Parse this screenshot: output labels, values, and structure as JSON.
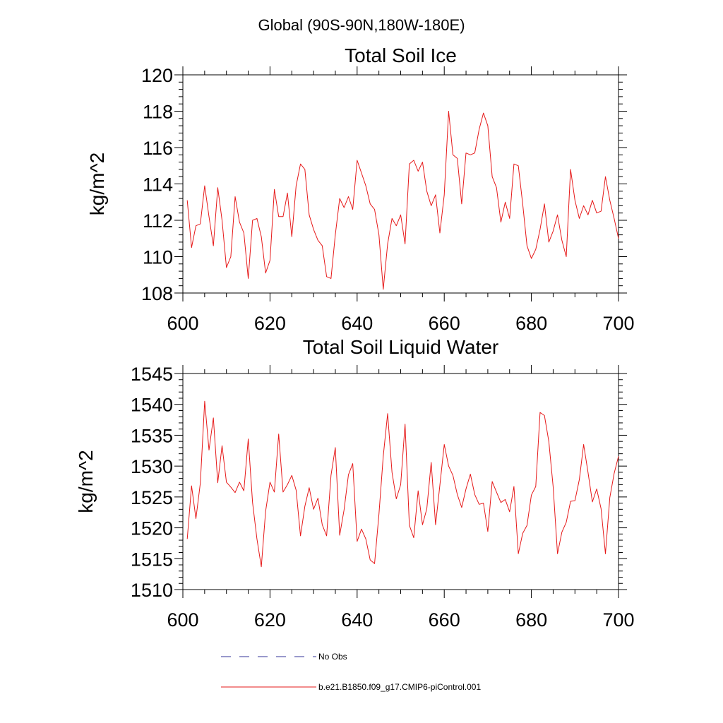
{
  "figure_title": "Global (90S-90N,180W-180E)",
  "legend": {
    "entries": [
      {
        "label": "No Obs",
        "style": "dashed",
        "color": "#333399"
      },
      {
        "label": "b.e21.B1850.f09_g17.CMIP6-piControl.001",
        "style": "solid",
        "color": "#e61919"
      }
    ]
  },
  "chart_data": [
    {
      "type": "line",
      "title": "Total Soil Ice",
      "xlabel": "",
      "ylabel": "kg/m^2",
      "xlim": [
        600,
        700
      ],
      "ylim": [
        108,
        120
      ],
      "x_ticks": [
        600,
        620,
        640,
        660,
        680,
        700
      ],
      "y_ticks": [
        108,
        110,
        112,
        114,
        116,
        118,
        120
      ],
      "x_start": 601,
      "color": "#e61919",
      "values": [
        113.1,
        110.5,
        111.7,
        111.8,
        113.9,
        112.2,
        110.6,
        113.8,
        112.0,
        109.4,
        110.0,
        113.3,
        111.9,
        111.3,
        108.8,
        112.0,
        112.1,
        111.1,
        109.1,
        109.8,
        113.7,
        112.2,
        112.2,
        113.5,
        111.1,
        113.9,
        115.1,
        114.8,
        112.3,
        111.5,
        110.9,
        110.6,
        108.9,
        108.8,
        111.2,
        113.2,
        112.7,
        113.3,
        112.6,
        115.3,
        114.6,
        113.9,
        112.9,
        112.6,
        111.2,
        108.2,
        110.7,
        112.1,
        111.7,
        112.3,
        110.7,
        115.1,
        115.3,
        114.7,
        115.2,
        113.6,
        112.8,
        113.4,
        111.3,
        113.4,
        118.0,
        115.6,
        115.4,
        112.9,
        115.7,
        115.6,
        115.7,
        117.0,
        117.9,
        117.2,
        114.4,
        113.8,
        111.9,
        113.0,
        112.1,
        115.1,
        115.0,
        112.9,
        110.6,
        109.9,
        110.4,
        111.5,
        112.9,
        110.8,
        111.4,
        112.3,
        110.9,
        110.0,
        114.8,
        113.1,
        112.1,
        112.8,
        112.3,
        113.1,
        112.4,
        112.5,
        114.4,
        113.1,
        112.1,
        111.0
      ]
    },
    {
      "type": "line",
      "title": "Total Soil Liquid Water",
      "xlabel": "",
      "ylabel": "kg/m^2",
      "xlim": [
        600,
        700
      ],
      "ylim": [
        1510,
        1545
      ],
      "x_ticks": [
        600,
        620,
        640,
        660,
        680,
        700
      ],
      "y_ticks": [
        1510,
        1515,
        1520,
        1525,
        1530,
        1535,
        1540,
        1545
      ],
      "x_start": 601,
      "color": "#e61919",
      "values": [
        1518.2,
        1526.8,
        1521.5,
        1527.2,
        1540.5,
        1532.6,
        1537.8,
        1527.3,
        1533.3,
        1527.4,
        1526.6,
        1525.7,
        1527.4,
        1526.0,
        1534.4,
        1524.1,
        1518.2,
        1513.7,
        1522.7,
        1527.4,
        1525.8,
        1535.2,
        1525.8,
        1527.0,
        1528.5,
        1526.1,
        1518.7,
        1523.5,
        1526.5,
        1523.0,
        1524.8,
        1520.5,
        1518.7,
        1528.5,
        1533.0,
        1518.8,
        1522.9,
        1528.6,
        1530.4,
        1517.8,
        1519.8,
        1518.2,
        1514.8,
        1514.2,
        1522.2,
        1531.6,
        1538.5,
        1529.0,
        1524.7,
        1527.0,
        1536.8,
        1520.4,
        1518.4,
        1526.0,
        1520.5,
        1523.1,
        1530.6,
        1520.5,
        1526.9,
        1533.5,
        1530.0,
        1528.5,
        1525.4,
        1523.3,
        1526.3,
        1528.7,
        1525.4,
        1523.8,
        1524.0,
        1519.4,
        1527.5,
        1525.8,
        1524.1,
        1524.6,
        1522.6,
        1526.7,
        1515.8,
        1519.1,
        1520.4,
        1525.3,
        1526.7,
        1538.7,
        1538.2,
        1534.0,
        1526.7,
        1515.8,
        1519.3,
        1520.9,
        1524.3,
        1524.4,
        1527.8,
        1533.5,
        1529.0,
        1524.2,
        1526.3,
        1523.1,
        1515.8,
        1524.9,
        1528.8,
        1531.6
      ]
    }
  ]
}
